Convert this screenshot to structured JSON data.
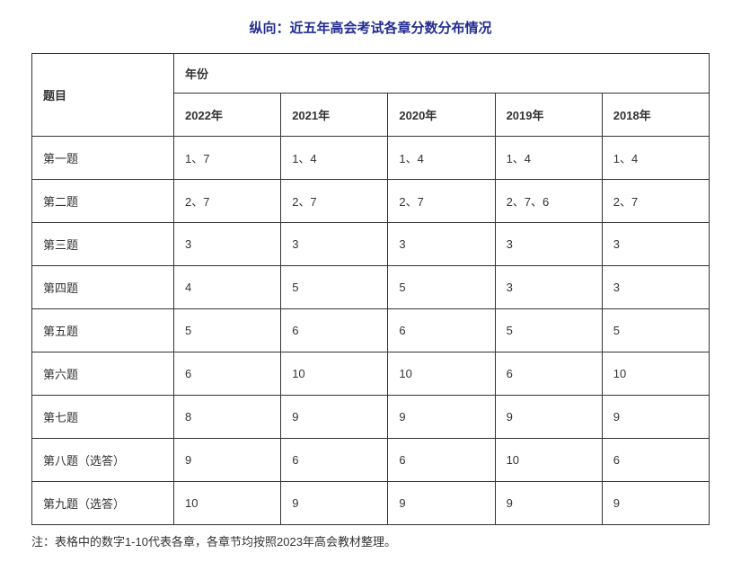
{
  "title": "纵向：近五年高会考试各章分数分布情况",
  "table": {
    "row_header_label": "题目",
    "year_header_label": "年份",
    "years": [
      "2022年",
      "2021年",
      "2020年",
      "2019年",
      "2018年"
    ],
    "rows": [
      {
        "label": "第一题",
        "cells": [
          "1、7",
          "1、4",
          "1、4",
          "1、4",
          "1、4"
        ]
      },
      {
        "label": "第二题",
        "cells": [
          "2、7",
          "2、7",
          "2、7",
          "2、7、6",
          "2、7"
        ]
      },
      {
        "label": "第三题",
        "cells": [
          "3",
          "3",
          "3",
          "3",
          "3"
        ]
      },
      {
        "label": "第四题",
        "cells": [
          "4",
          "5",
          "5",
          "3",
          "3"
        ]
      },
      {
        "label": "第五题",
        "cells": [
          "5",
          "6",
          "6",
          "5",
          "5"
        ]
      },
      {
        "label": "第六题",
        "cells": [
          "6",
          "10",
          "10",
          "6",
          "10"
        ]
      },
      {
        "label": "第七题",
        "cells": [
          "8",
          "9",
          "9",
          "9",
          "9"
        ]
      },
      {
        "label": "第八题（选答）",
        "cells": [
          "9",
          "6",
          "6",
          "10",
          "6"
        ]
      },
      {
        "label": "第九题（选答）",
        "cells": [
          "10",
          "9",
          "9",
          "9",
          "9"
        ]
      }
    ],
    "border_color": "#333333",
    "header_color": "#333333",
    "cell_text_color": "#333333",
    "title_color": "#232e8f",
    "background_color": "#ffffff",
    "font_size_title": 15,
    "font_size_cells": 13,
    "col_question_width": 158
  },
  "note": "注：表格中的数字1-10代表各章，各章节均按照2023年高会教材整理。"
}
